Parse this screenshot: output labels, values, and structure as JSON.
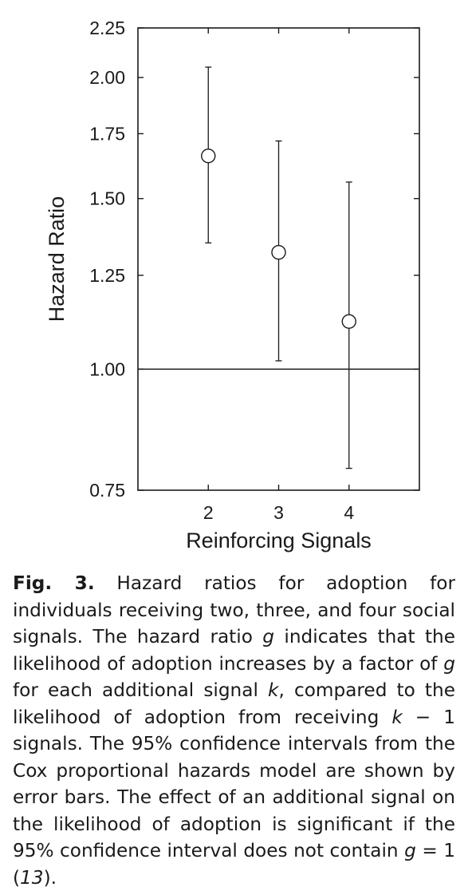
{
  "chart_data": {
    "type": "scatter",
    "title": "",
    "xlabel": "Reinforcing Signals",
    "ylabel": "Hazard Ratio",
    "y_scale": "log",
    "xlim": [
      1.0,
      5.0
    ],
    "ylim": [
      0.75,
      2.25
    ],
    "x_ticks": [
      2,
      3,
      4
    ],
    "x_tick_labels": [
      "2",
      "3",
      "4"
    ],
    "y_ticks": [
      0.75,
      1.0,
      1.25,
      1.5,
      1.75,
      2.0,
      2.25
    ],
    "y_tick_labels": [
      "0.75",
      "1.00",
      "1.25",
      "1.50",
      "1.75",
      "2.00",
      "2.25"
    ],
    "reference_line": 1.0,
    "grid": false,
    "series": [
      {
        "name": "Hazard ratio",
        "points": [
          {
            "x": 2,
            "value": 1.66,
            "ci_low": 1.35,
            "ci_high": 2.05
          },
          {
            "x": 3,
            "value": 1.32,
            "ci_low": 1.02,
            "ci_high": 1.72
          },
          {
            "x": 4,
            "value": 1.12,
            "ci_low": 0.79,
            "ci_high": 1.56
          }
        ]
      }
    ]
  },
  "caption": {
    "fig_label": "Fig. 3.",
    "s1": " Hazard ratios for adoption for individuals receiving two, three, and four social signals. The hazard ratio ",
    "var_g1": "g",
    "s2": " indicates that the likelihood of adoption increases by a factor of ",
    "var_g2": "g",
    "s3": " for each additional signal ",
    "var_k1": "k",
    "s4": ", compared to the likelihood of adoption from receiving ",
    "var_k2": "k",
    "s5": " − 1 signals. The 95% confidence intervals from the Cox proportional hazards model are shown by error bars. The effect of an additional signal on the likelihood of adoption is significant if the 95% confidence interval does not contain ",
    "var_g3": "g",
    "s6": " = 1 (",
    "ref": "13",
    "s7": ")."
  }
}
